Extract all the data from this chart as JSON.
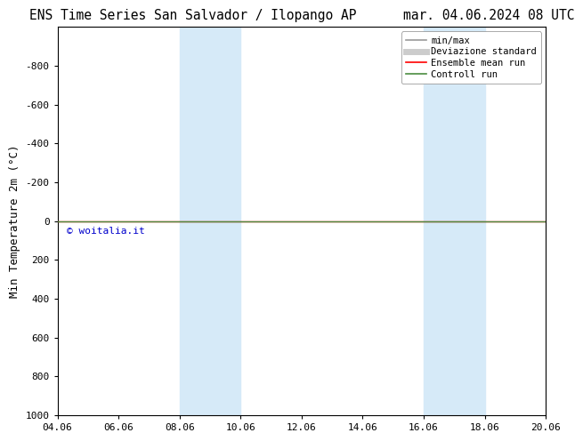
{
  "title": "ENS Time Series San Salvador / Ilopango AP      mar. 04.06.2024 08 UTC",
  "ylabel": "Min Temperature 2m (°C)",
  "ylim_top": -1000,
  "ylim_bottom": 1000,
  "yticks": [
    -800,
    -600,
    -400,
    -200,
    0,
    200,
    400,
    600,
    800,
    1000
  ],
  "xlim": [
    4,
    20
  ],
  "xtick_positions": [
    4,
    6,
    8,
    10,
    12,
    14,
    16,
    18,
    20
  ],
  "xtick_labels": [
    "04.06",
    "06.06",
    "08.06",
    "10.06",
    "12.06",
    "14.06",
    "16.06",
    "18.06",
    "20.06"
  ],
  "shaded_bands": [
    {
      "x_start": 8,
      "x_end": 10
    },
    {
      "x_start": 16,
      "x_end": 18
    }
  ],
  "control_run_y": 0,
  "ensemble_mean_y": 0,
  "line_color_ensemble": "#ff0000",
  "line_color_control": "#4a8c3f",
  "shaded_color": "#d6eaf8",
  "background_color": "#ffffff",
  "legend_items": [
    {
      "label": "min/max",
      "color": "#999999",
      "lw": 1.2
    },
    {
      "label": "Deviazione standard",
      "color": "#cccccc",
      "lw": 5
    },
    {
      "label": "Ensemble mean run",
      "color": "#ff0000",
      "lw": 1.2
    },
    {
      "label": "Controll run",
      "color": "#4a8c3f",
      "lw": 1.2
    }
  ],
  "watermark": "© woitalia.it",
  "watermark_color": "#0000cc",
  "title_fontsize": 10.5,
  "ylabel_fontsize": 9,
  "tick_fontsize": 8,
  "legend_fontsize": 7.5,
  "watermark_fontsize": 8
}
